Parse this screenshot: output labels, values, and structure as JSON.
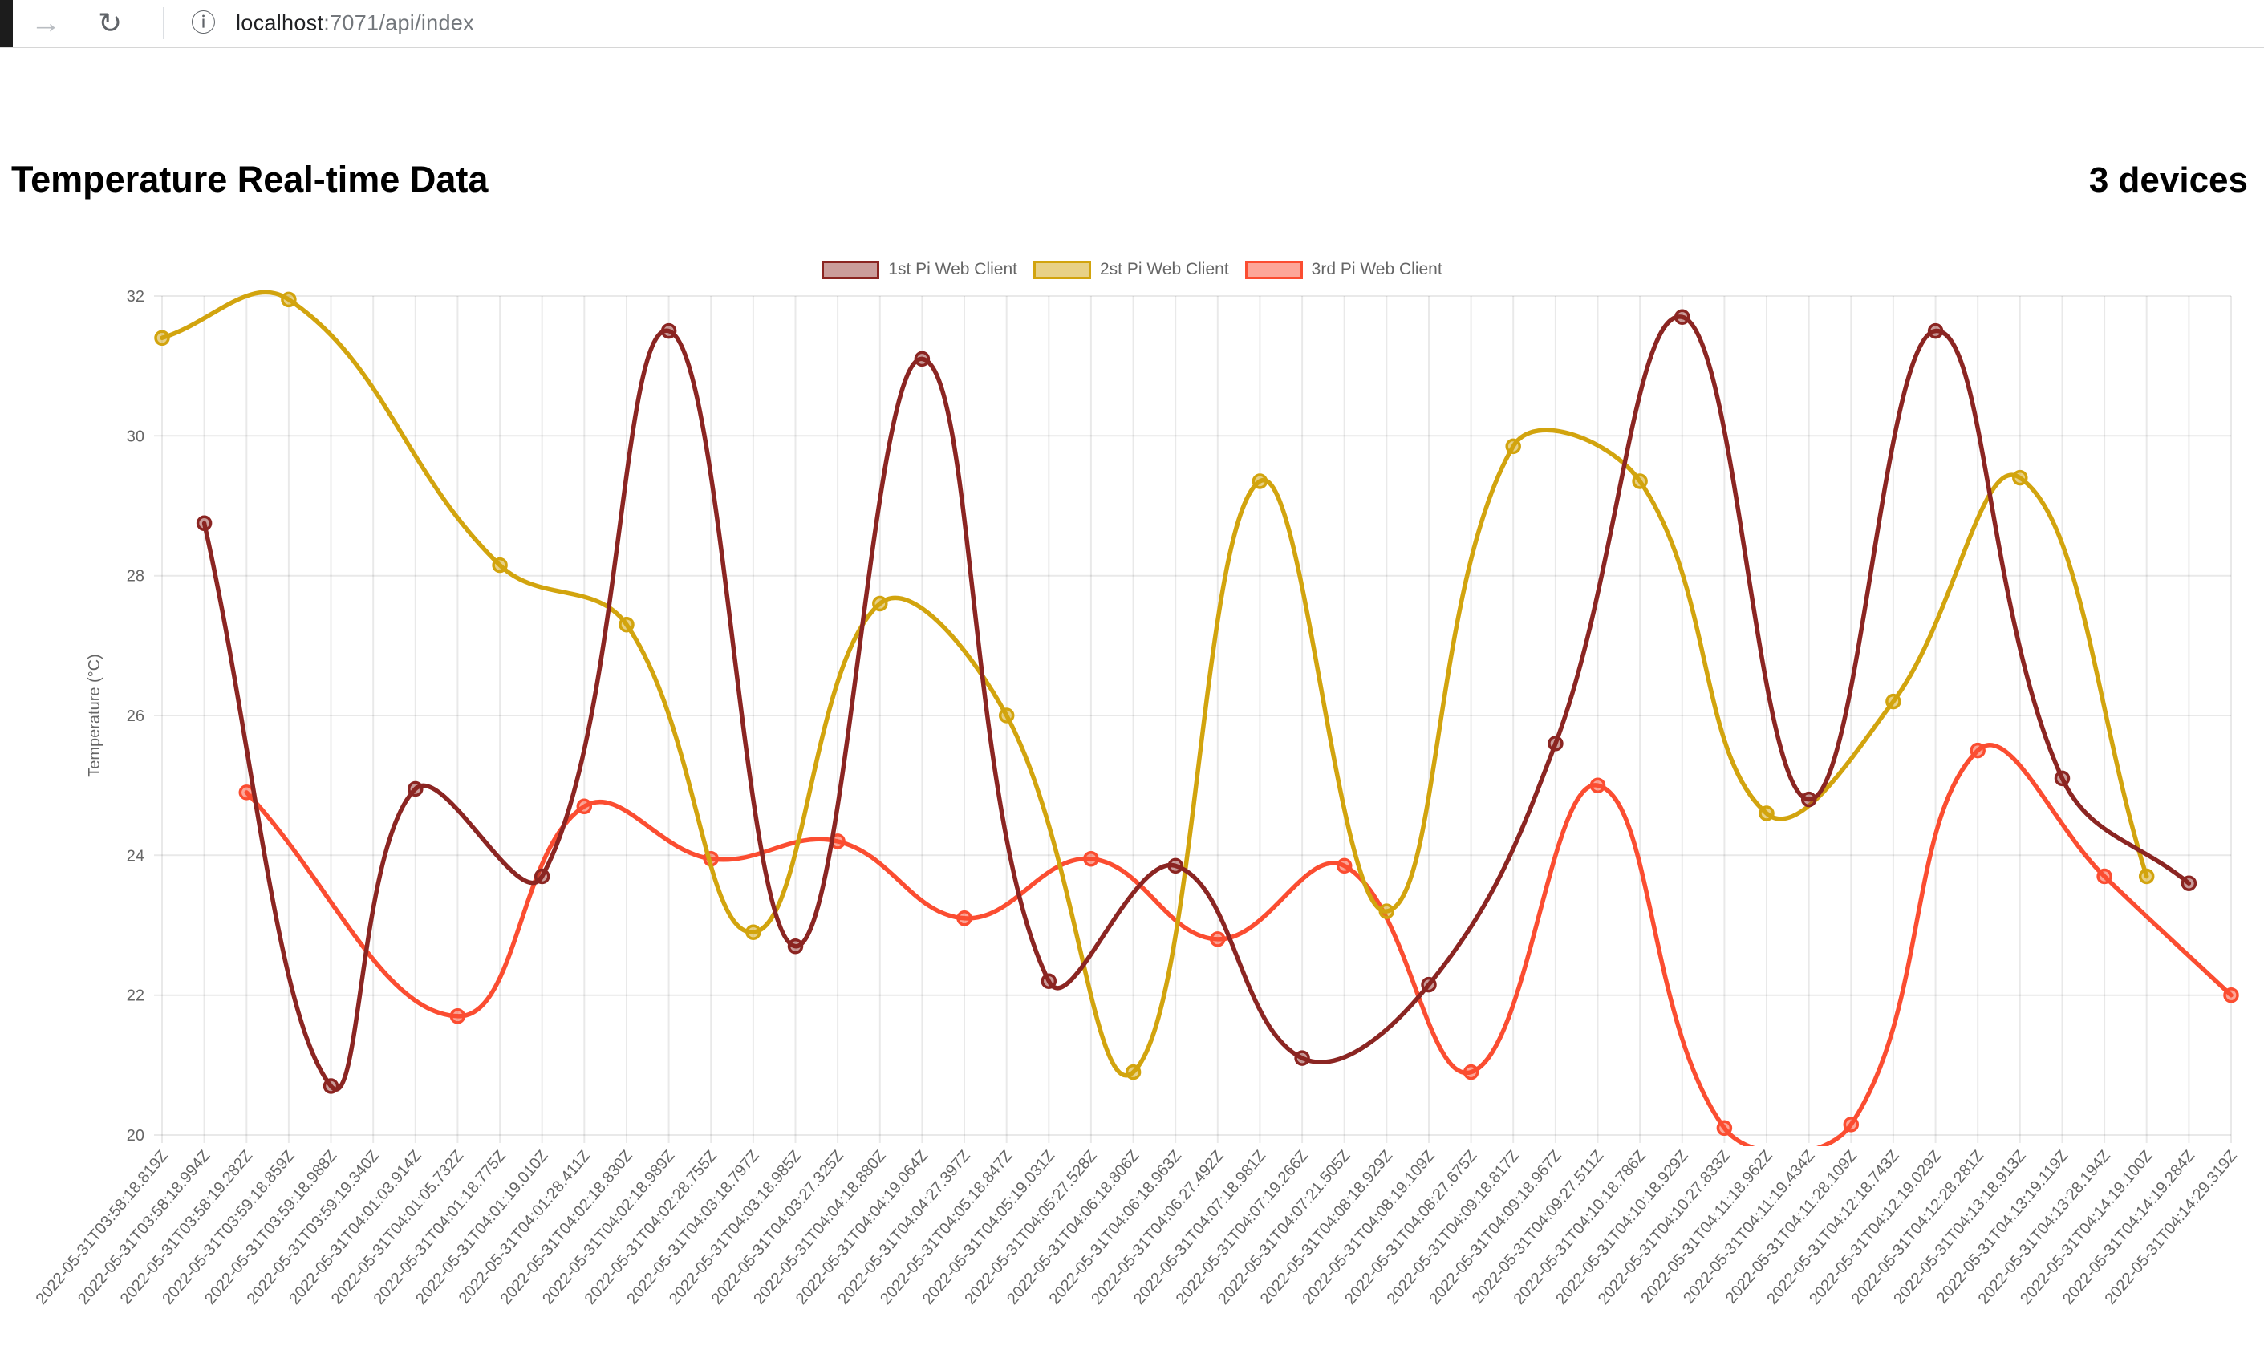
{
  "browser": {
    "url_host": "localhost",
    "url_path": ":7071/api/index"
  },
  "header": {
    "title": "Temperature Real-time Data",
    "devices_label": "3 devices"
  },
  "chart_data": {
    "type": "line",
    "title": "Temperature Real-time Data",
    "xlabel": "",
    "ylabel": "Temperature (°C)",
    "ylim": [
      20,
      32
    ],
    "yticks": [
      20,
      22,
      24,
      26,
      28,
      30,
      32
    ],
    "grid": true,
    "legend_position": "top",
    "x_labels": [
      "2022-05-31T03:58:18.819Z",
      "2022-05-31T03:58:18.994Z",
      "2022-05-31T03:58:19.282Z",
      "2022-05-31T03:59:18.859Z",
      "2022-05-31T03:59:18.988Z",
      "2022-05-31T03:59:19.340Z",
      "2022-05-31T04:01:03.914Z",
      "2022-05-31T04:01:05.732Z",
      "2022-05-31T04:01:18.775Z",
      "2022-05-31T04:01:19.010Z",
      "2022-05-31T04:01:28.411Z",
      "2022-05-31T04:02:18.830Z",
      "2022-05-31T04:02:18.989Z",
      "2022-05-31T04:02:28.755Z",
      "2022-05-31T04:03:18.797Z",
      "2022-05-31T04:03:18.985Z",
      "2022-05-31T04:03:27.325Z",
      "2022-05-31T04:04:18.880Z",
      "2022-05-31T04:04:19.064Z",
      "2022-05-31T04:04:27.397Z",
      "2022-05-31T04:05:18.847Z",
      "2022-05-31T04:05:19.031Z",
      "2022-05-31T04:05:27.528Z",
      "2022-05-31T04:06:18.806Z",
      "2022-05-31T04:06:18.963Z",
      "2022-05-31T04:06:27.492Z",
      "2022-05-31T04:07:18.981Z",
      "2022-05-31T04:07:19.266Z",
      "2022-05-31T04:07:21.505Z",
      "2022-05-31T04:08:18.929Z",
      "2022-05-31T04:08:19.109Z",
      "2022-05-31T04:08:27.675Z",
      "2022-05-31T04:09:18.817Z",
      "2022-05-31T04:09:18.967Z",
      "2022-05-31T04:09:27.511Z",
      "2022-05-31T04:10:18.786Z",
      "2022-05-31T04:10:18.929Z",
      "2022-05-31T04:10:27.833Z",
      "2022-05-31T04:11:18.962Z",
      "2022-05-31T04:11:19.434Z",
      "2022-05-31T04:11:28.109Z",
      "2022-05-31T04:12:18.743Z",
      "2022-05-31T04:12:19.029Z",
      "2022-05-31T04:12:28.281Z",
      "2022-05-31T04:13:18.913Z",
      "2022-05-31T04:13:19.119Z",
      "2022-05-31T04:13:28.194Z",
      "2022-05-31T04:14:19.100Z",
      "2022-05-31T04:14:19.284Z",
      "2022-05-31T04:14:29.319Z"
    ],
    "series": [
      {
        "name": "1st Pi Web Client",
        "color": "#8b2522",
        "fill": "rgba(139,37,34,0.45)",
        "points": [
          [
            1,
            28.75
          ],
          [
            4,
            20.7
          ],
          [
            6,
            24.95
          ],
          [
            9,
            23.7
          ],
          [
            12,
            31.5
          ],
          [
            15,
            22.7
          ],
          [
            18,
            31.1
          ],
          [
            21,
            22.2
          ],
          [
            24,
            23.85
          ],
          [
            27,
            21.1
          ],
          [
            30,
            22.15
          ],
          [
            33,
            25.6
          ],
          [
            36,
            31.7
          ],
          [
            39,
            24.8
          ],
          [
            42,
            31.5
          ],
          [
            45,
            25.1
          ],
          [
            48,
            23.6
          ]
        ]
      },
      {
        "name": "2st Pi Web Client",
        "color": "#d2a40e",
        "fill": "rgba(210,164,14,0.5)",
        "points": [
          [
            0,
            31.4
          ],
          [
            3,
            31.95
          ],
          [
            8,
            28.15
          ],
          [
            11,
            27.3
          ],
          [
            14,
            22.9
          ],
          [
            17,
            27.6
          ],
          [
            20,
            26.0
          ],
          [
            23,
            20.9
          ],
          [
            26,
            29.35
          ],
          [
            29,
            23.2
          ],
          [
            32,
            29.85
          ],
          [
            35,
            29.35
          ],
          [
            38,
            24.6
          ],
          [
            41,
            26.2
          ],
          [
            44,
            29.4
          ],
          [
            47,
            23.7
          ]
        ]
      },
      {
        "name": "3rd Pi Web Client",
        "color": "#fb4d31",
        "fill": "rgba(251,77,49,0.5)",
        "points": [
          [
            2,
            24.9
          ],
          [
            7,
            21.7
          ],
          [
            10,
            24.7
          ],
          [
            13,
            23.95
          ],
          [
            16,
            24.2
          ],
          [
            19,
            23.1
          ],
          [
            22,
            23.95
          ],
          [
            25,
            22.8
          ],
          [
            28,
            23.85
          ],
          [
            31,
            20.9
          ],
          [
            34,
            25.0
          ],
          [
            37,
            20.1
          ],
          [
            40,
            20.15
          ],
          [
            43,
            25.5
          ],
          [
            46,
            23.7
          ],
          [
            49,
            22.0
          ]
        ]
      }
    ]
  }
}
